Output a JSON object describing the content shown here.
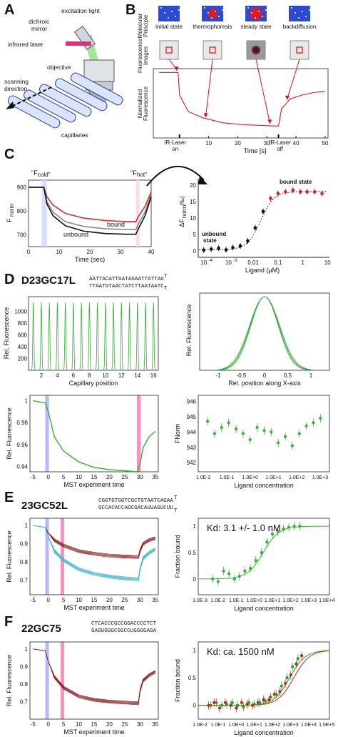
{
  "panel_letters": {
    "a": "A",
    "b": "B",
    "c": "C",
    "d": "D",
    "e": "E",
    "f": "F"
  },
  "A": {
    "labels": [
      "excitation light",
      "dichroic",
      "mirror",
      "infrared laser",
      "objective",
      "scanning",
      "direction",
      "capillaries"
    ]
  },
  "B": {
    "side_labels": [
      "Molecular",
      "Principle",
      "Fluorescence",
      "Images",
      "Normalized",
      "Fluorescence"
    ],
    "states": [
      "initial state",
      "thermophoresis",
      "steady state",
      "backdiffusion"
    ],
    "events": [
      {
        "text": [
          "IR-Laser",
          "on"
        ],
        "t": 0
      },
      {
        "text": [
          "IR-Laser",
          "off"
        ],
        "t": 34
      }
    ],
    "chart_data": {
      "type": "line",
      "xlabel": "Time [s]",
      "xticks": [
        10,
        20,
        30,
        40,
        50
      ],
      "series": [
        {
          "x": [
            -7,
            -0.5,
            0,
            3,
            8,
            15,
            22,
            28,
            33,
            34,
            35,
            38,
            42,
            46,
            50
          ],
          "y": [
            0.97,
            0.97,
            0.79,
            0.66,
            0.61,
            0.57,
            0.555,
            0.55,
            0.545,
            0.545,
            0.68,
            0.76,
            0.79,
            0.81,
            0.82
          ]
        }
      ]
    }
  },
  "C": {
    "cold_label": "\"F",
    "cold_sub": "cold",
    "hot_label": "\"F",
    "hot_sub": "hot",
    "left_chart": {
      "type": "line",
      "ylabel": "F",
      "ylabel_sub": "norm",
      "xlabel": "Time (sec)",
      "xticks": [
        0,
        10,
        20,
        30,
        40
      ],
      "yticks": [
        700,
        800,
        900
      ],
      "ylim": [
        650,
        930
      ],
      "xlim": [
        0,
        40
      ],
      "series": [
        {
          "name": "bound",
          "color": "#d42a2a",
          "x": [
            0,
            5,
            6,
            8,
            12,
            18,
            25,
            32,
            35,
            36,
            38,
            40
          ],
          "y": [
            900,
            900,
            860,
            825,
            790,
            770,
            760,
            755,
            755,
            780,
            820,
            880
          ]
        },
        {
          "name": "",
          "color": "#888888",
          "x": [
            0,
            5,
            6,
            8,
            12,
            18,
            25,
            32,
            35,
            36,
            38,
            40
          ],
          "y": [
            900,
            900,
            840,
            795,
            755,
            735,
            725,
            722,
            722,
            750,
            795,
            870
          ]
        },
        {
          "name": "unbound",
          "color": "#111111",
          "x": [
            0,
            5,
            6,
            8,
            12,
            18,
            25,
            32,
            35,
            36,
            38,
            40
          ],
          "y": [
            900,
            900,
            830,
            780,
            738,
            715,
            705,
            702,
            702,
            730,
            780,
            860
          ]
        }
      ]
    },
    "right_chart": {
      "type": "scatter",
      "ylabel": "ΔF",
      "ylabel_sub": "norm",
      "ylabel_unit": "(‰)",
      "xlabel": "Ligand (μM)",
      "xscale": "log",
      "xticks": [
        "10",
        "10",
        "0.01",
        "0.1",
        "1",
        "10"
      ],
      "xtick_sup": [
        "-4",
        "-3",
        "",
        "",
        "",
        ""
      ],
      "yticks": [
        0,
        5,
        10,
        15,
        20
      ],
      "ylim": [
        -2,
        22
      ],
      "state_labels": [
        "bound state",
        "unbound",
        "state"
      ],
      "series": [
        {
          "x": [
            0.0001,
            0.0002,
            0.0004,
            0.0008,
            0.0015,
            0.003,
            0.006,
            0.012,
            0.025,
            0.05,
            0.1,
            0.2,
            0.4,
            0.8,
            1.5,
            3,
            6
          ],
          "y": [
            0.2,
            0.5,
            0.8,
            0.3,
            1.0,
            1.5,
            3,
            7,
            12,
            16,
            17.5,
            18,
            18.5,
            18,
            18,
            18,
            17.5
          ]
        }
      ]
    }
  },
  "D": {
    "title": "D23GC17L",
    "seq_top": "AATTACATTGATAGAATTATTAG",
    "seq_top_end": "T",
    "seq_bot": "TTAATGTAACTATCTTAATAATC",
    "seq_bot_end": "T",
    "cap_chart": {
      "type": "line",
      "ylabel": "Rel. Fluorescence",
      "xlabel": "Capillary position",
      "xticks": [
        2,
        4,
        6,
        8,
        10,
        12,
        14,
        16
      ],
      "yticks": [
        200,
        400,
        600,
        800,
        1000
      ],
      "ylim": [
        0,
        1250
      ],
      "peaks": [
        1,
        2,
        3,
        4,
        5,
        6,
        7,
        8,
        9,
        10,
        11,
        12,
        13,
        14,
        15,
        16
      ],
      "peak_height": 1150
    },
    "x_chart": {
      "type": "line",
      "ylabel": "Rel. Fluorescence",
      "xlabel": "Rel. position along X-axis",
      "xticks": [
        "-1",
        "-0.5",
        "0",
        "0.5",
        "1"
      ]
    },
    "mst_chart": {
      "type": "line",
      "ylabel": "Rel. Fluorescence",
      "xlabel": "MST experiment time",
      "xticks": [
        -5,
        0,
        5,
        10,
        15,
        20,
        25,
        30,
        35
      ],
      "yticks": [
        "0.94",
        "0.96",
        "0.98",
        "1"
      ],
      "ylim": [
        0.935,
        1.005
      ],
      "series": [
        {
          "x": [
            -5,
            -1,
            0,
            2,
            5,
            10,
            15,
            20,
            25,
            29,
            30,
            31,
            33,
            35
          ],
          "y": [
            1,
            0.998,
            0.99,
            0.975,
            0.962,
            0.952,
            0.947,
            0.945,
            0.944,
            0.943,
            0.95,
            0.965,
            0.975,
            0.98
          ]
        }
      ]
    },
    "dose_chart": {
      "type": "scatter",
      "ylabel": "FNorm",
      "xlabel": "Ligand concentration",
      "xscale": "log",
      "xticks": [
        "1.0E-2",
        "1.0E-1",
        "1.0E+0",
        "1.0E+1",
        "1.0E+2",
        "1.0E+3"
      ],
      "yticks": [
        942,
        943,
        944,
        945,
        946
      ],
      "ylim": [
        941.4,
        946.4
      ],
      "series": [
        {
          "x": [
            0.015,
            0.03,
            0.06,
            0.12,
            0.25,
            0.5,
            1,
            2,
            4,
            8,
            16,
            32,
            64,
            128,
            256,
            512,
            1024
          ],
          "y": [
            944.7,
            943.9,
            944.3,
            944.6,
            944.2,
            943.9,
            943.5,
            944.3,
            944.1,
            944.0,
            943.3,
            943.7,
            943.1,
            943.9,
            944.4,
            944.6,
            944.9
          ]
        }
      ]
    }
  },
  "E": {
    "title": "23GC52L",
    "seq_top": "CGGTGTGGTCGCTGTAATCAGAA",
    "seq_top_end": "T",
    "seq_bot": "GCCACACCAGCGACAUUAGUCUU",
    "seq_bot_end": "T",
    "mst_chart": {
      "type": "line",
      "ylabel": "Rel. Fluorescence",
      "xlabel": "MST experiment time",
      "xticks": [
        -5,
        0,
        5,
        10,
        15,
        20,
        25,
        30,
        35
      ],
      "yticks": [
        "0.7",
        "0.8",
        "0.9",
        "1"
      ],
      "ylim": [
        0.62,
        1.04
      ],
      "series": [
        {
          "name": "",
          "color": "#8b1a1a",
          "x": [
            -5,
            -1,
            0,
            2,
            5,
            10,
            15,
            20,
            25,
            29.5,
            30,
            31,
            33,
            35
          ],
          "y": [
            1,
            0.99,
            0.96,
            0.92,
            0.89,
            0.86,
            0.845,
            0.835,
            0.83,
            0.827,
            0.86,
            0.9,
            0.92,
            0.93
          ]
        },
        {
          "name": "",
          "color": "#3ab4c8",
          "x": [
            -5,
            -1,
            0,
            2,
            5,
            10,
            15,
            20,
            25,
            29.5,
            30,
            31,
            33,
            35
          ],
          "y": [
            1,
            0.99,
            0.94,
            0.86,
            0.81,
            0.76,
            0.735,
            0.72,
            0.71,
            0.705,
            0.76,
            0.82,
            0.85,
            0.87
          ]
        }
      ]
    },
    "dose_chart": {
      "type": "scatter",
      "ylabel": "Fraction bound",
      "xlabel": "Ligand concentration",
      "xscale": "log",
      "annotation": "Kd: 3.1 +/- 1.0 nM",
      "xticks": [
        "1.0E-3",
        "1.0E-2",
        "1.0E-1",
        "1.0E+0",
        "1.0E+1",
        "1.0E+2",
        "1.0E+3",
        "1.0E+4"
      ],
      "yticks": [
        "0",
        "0.5",
        "1"
      ],
      "ylim": [
        -0.3,
        1.15
      ],
      "series": [
        {
          "x": [
            0.005,
            0.01,
            0.02,
            0.04,
            0.08,
            0.15,
            0.3,
            0.6,
            1.2,
            2.5,
            5,
            10,
            20,
            40,
            80,
            160,
            320
          ],
          "y": [
            0.0,
            -0.05,
            0.15,
            0.1,
            0.0,
            0.05,
            0.15,
            0.2,
            0.35,
            0.5,
            0.7,
            0.85,
            0.9,
            0.95,
            0.98,
            1.0,
            1.0
          ]
        }
      ]
    }
  },
  "F": {
    "title": "22GC75",
    "seq_top": "CTCACCCGCCGGACCCCTCT",
    "seq_bot": "GAGUGGGCGGCCUGGGGAGA",
    "mst_chart": {
      "type": "line",
      "ylabel": "Rel. Fluorescence",
      "xlabel": "MST experiment time",
      "xticks": [
        -5,
        0,
        5,
        10,
        15,
        20,
        25,
        30,
        35
      ],
      "yticks": [
        "0.7",
        "0.8",
        "0.9",
        "1"
      ],
      "ylim": [
        0.6,
        1.04
      ],
      "series": [
        {
          "name": "",
          "color": "#8b1a1a",
          "x": [
            -5,
            -1,
            0,
            2,
            5,
            10,
            15,
            20,
            25,
            29.5,
            30,
            31,
            33,
            35
          ],
          "y": [
            1,
            0.99,
            0.93,
            0.84,
            0.78,
            0.73,
            0.71,
            0.7,
            0.695,
            0.69,
            0.76,
            0.82,
            0.85,
            0.87
          ]
        }
      ]
    },
    "dose_chart": {
      "type": "scatter",
      "ylabel": "Fraction bound",
      "xlabel": "Ligand concentration",
      "xscale": "log",
      "annotation": "Kd: ca. 1500 nM",
      "xticks": [
        "1.0E-2",
        "1.0E-1",
        "1.0E+0",
        "1.0E+1",
        "1.0E+2",
        "1.0E+3",
        "1.0E+4",
        "1.0E+5"
      ],
      "yticks": [
        "0",
        "0.5",
        "1"
      ],
      "ylim": [
        -0.25,
        1.15
      ],
      "series": [
        {
          "name": "",
          "color": "#c81e1e",
          "x": [
            0.03,
            0.06,
            0.12,
            0.25,
            0.5,
            1,
            2,
            4,
            8,
            16,
            32,
            64,
            128,
            256,
            512,
            1024,
            2048,
            4096
          ],
          "y": [
            0.0,
            0.05,
            -0.05,
            0.05,
            0.0,
            -0.05,
            0.05,
            0.02,
            0.0,
            0.05,
            0.1,
            0.1,
            0.2,
            0.25,
            0.4,
            0.55,
            0.75,
            0.9
          ]
        },
        {
          "name": "",
          "color": "#2a9d2a",
          "x": [
            0.04,
            0.08,
            0.16,
            0.3,
            0.6,
            1.2,
            2.5,
            5,
            10,
            20,
            40,
            80,
            160,
            320,
            640,
            1280,
            2560
          ],
          "y": [
            0.0,
            0.05,
            0.0,
            0.02,
            0.05,
            0.0,
            -0.03,
            0.05,
            0.02,
            0.05,
            0.08,
            0.15,
            0.2,
            0.35,
            0.5,
            0.7,
            0.85
          ]
        }
      ]
    }
  }
}
